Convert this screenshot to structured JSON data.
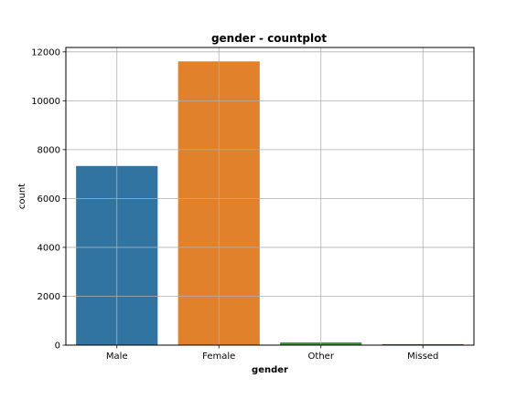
{
  "chart_data": {
    "type": "bar",
    "title": "gender - countplot",
    "xlabel": "gender",
    "ylabel": "count",
    "categories": [
      "Male",
      "Female",
      "Other",
      "Missed"
    ],
    "values": [
      7330,
      11610,
      110,
      40
    ],
    "colors": [
      "#3274a1",
      "#e1812c",
      "#3a923a",
      "#c03d3e"
    ],
    "ylim": [
      0,
      12180
    ],
    "yticks": [
      0,
      2000,
      4000,
      6000,
      8000,
      10000,
      12000
    ],
    "grid": true,
    "grid_color": "#b0b0b0"
  }
}
